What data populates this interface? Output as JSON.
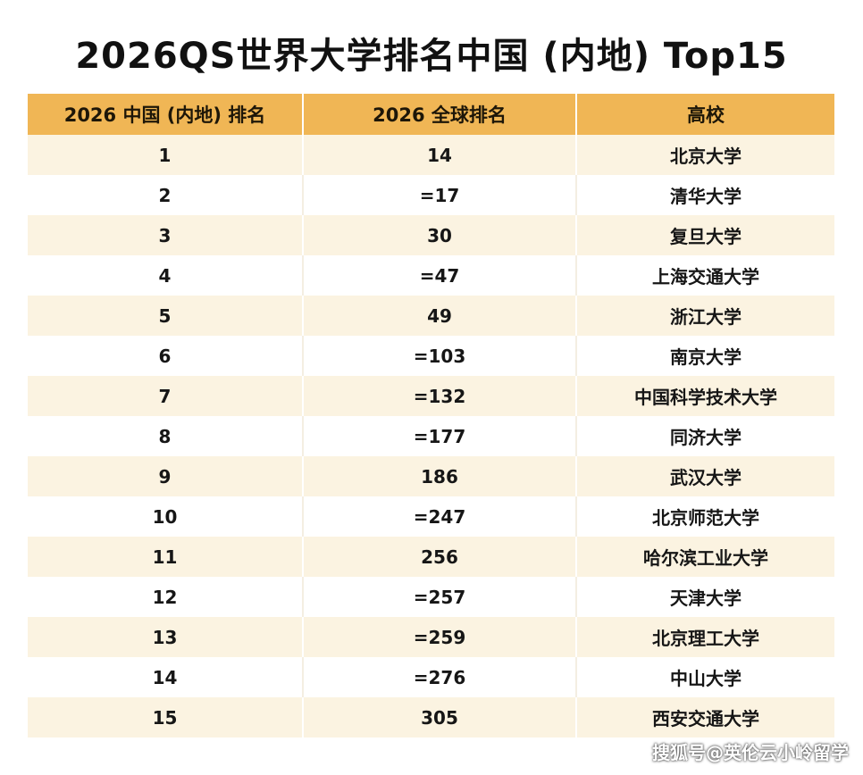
{
  "title": "2026QS世界大学排名中国 (内地) Top15",
  "headers": {
    "rank_cn": "2026 中国 (内地) 排名",
    "rank_global": "2026 全球排名",
    "university": "高校"
  },
  "rows": [
    {
      "rank_cn": "1",
      "rank_global": "14",
      "university": "北京大学"
    },
    {
      "rank_cn": "2",
      "rank_global": "=17",
      "university": "清华大学"
    },
    {
      "rank_cn": "3",
      "rank_global": "30",
      "university": "复旦大学"
    },
    {
      "rank_cn": "4",
      "rank_global": "=47",
      "university": "上海交通大学"
    },
    {
      "rank_cn": "5",
      "rank_global": "49",
      "university": "浙江大学"
    },
    {
      "rank_cn": "6",
      "rank_global": "=103",
      "university": "南京大学"
    },
    {
      "rank_cn": "7",
      "rank_global": "=132",
      "university": "中国科学技术大学"
    },
    {
      "rank_cn": "8",
      "rank_global": "=177",
      "university": "同济大学"
    },
    {
      "rank_cn": "9",
      "rank_global": "186",
      "university": "武汉大学"
    },
    {
      "rank_cn": "10",
      "rank_global": "=247",
      "university": "北京师范大学"
    },
    {
      "rank_cn": "11",
      "rank_global": "256",
      "university": "哈尔滨工业大学"
    },
    {
      "rank_cn": "12",
      "rank_global": "=257",
      "university": "天津大学"
    },
    {
      "rank_cn": "13",
      "rank_global": "=259",
      "university": "北京理工大学"
    },
    {
      "rank_cn": "14",
      "rank_global": "=276",
      "university": "中山大学"
    },
    {
      "rank_cn": "15",
      "rank_global": "305",
      "university": "西安交通大学"
    }
  ],
  "watermark": "搜狐号@英伦云小岭留学",
  "colors": {
    "header_bg": "#f0b655",
    "stripe_bg": "#fbf3e1",
    "text": "#161616"
  }
}
